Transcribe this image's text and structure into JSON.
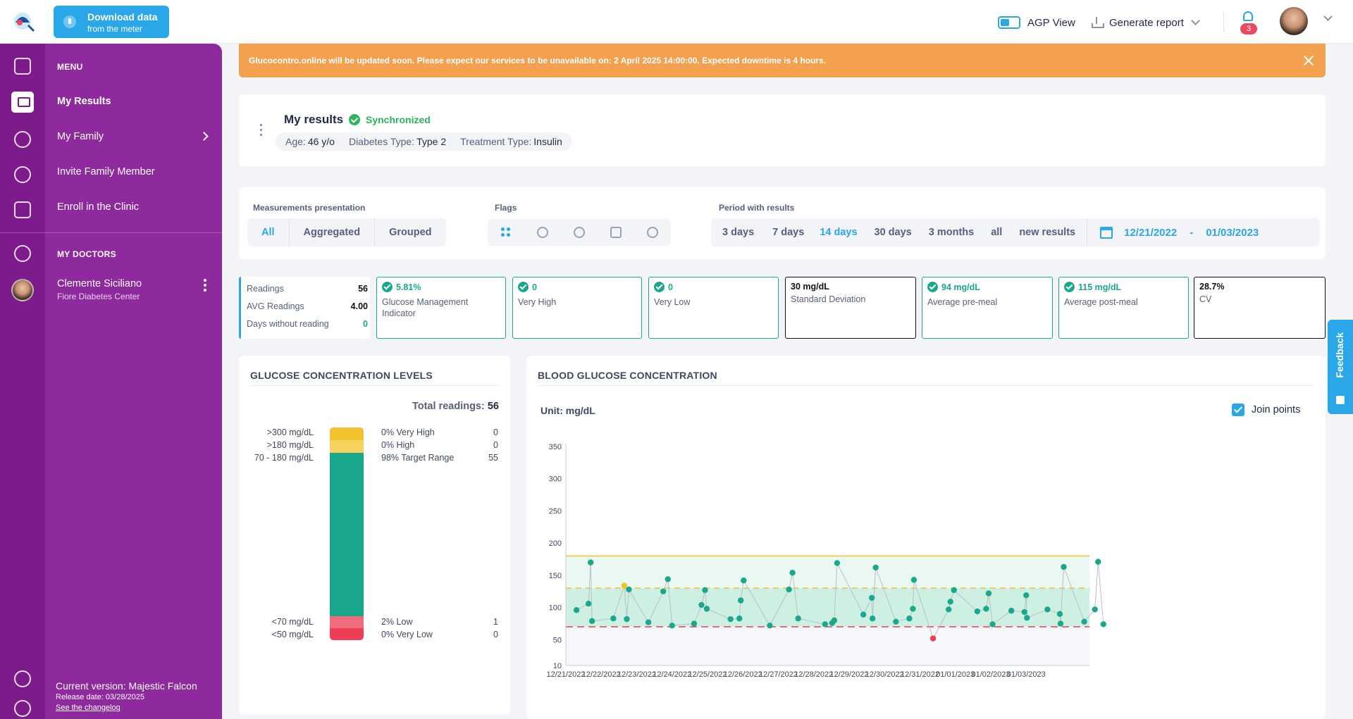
{
  "header": {
    "download_title": "Download data",
    "download_sub": "from the meter",
    "agp_view": "AGP View",
    "generate_report": "Generate report",
    "notifications": "3"
  },
  "rail_icons": [
    "collapse-icon",
    "monitor-icon",
    "family-icon",
    "invite-icon",
    "clinic-icon",
    "stethoscope-icon",
    "globe-icon",
    "help-icon"
  ],
  "menu": {
    "heading": "MENU",
    "items": [
      "My Results",
      "My Family",
      "Invite Family Member",
      "Enroll in the Clinic"
    ],
    "doctors_heading": "MY DOCTORS",
    "doctor_name": "Clemente Siciliano",
    "doctor_clinic": "Fiore Diabetes Center",
    "version": "Current version: Majestic Falcon",
    "release": "Release date: 03/28/2025",
    "changelog": "See the changelog"
  },
  "banner": {
    "text": "Glucocontro.online will be updated soon. Please expect our services to be unavailable on: 2 April 2025 14:00:00. Expected downtime is 4 hours."
  },
  "results": {
    "title": "My results",
    "status": "Synchronized",
    "age_label": "Age:",
    "age": "46 y/o",
    "diabetes_label": "Diabetes Type:",
    "diabetes": "Type 2",
    "treatment_label": "Treatment Type:",
    "treatment": "Insulin"
  },
  "filters": {
    "presentation_label": "Measurements presentation",
    "presentation": [
      "All",
      "Aggregated",
      "Grouped"
    ],
    "flags_label": "Flags",
    "period_label": "Period with results",
    "periods": [
      "3 days",
      "7 days",
      "14 days",
      "30 days",
      "3 months",
      "all",
      "new results"
    ],
    "date_from": "12/21/2022",
    "date_sep": "-",
    "date_to": "01/03/2023"
  },
  "summary": {
    "readings_label": "Readings",
    "readings": "56",
    "avg_label": "AVG Readings",
    "avg": "4.00",
    "days_label": "Days without reading",
    "days": "0"
  },
  "stats": [
    {
      "value": "5.81%",
      "label": "Glucose Management Indicator",
      "ok": true
    },
    {
      "value": "0",
      "label": "Very High",
      "ok": true
    },
    {
      "value": "0",
      "label": "Very Low",
      "ok": true
    },
    {
      "value": "30 mg/dL",
      "label": "Standard Deviation",
      "ok": false
    },
    {
      "value": "94 mg/dL",
      "label": "Average pre-meal",
      "ok": true
    },
    {
      "value": "115 mg/dL",
      "label": "Average post-meal",
      "ok": true
    },
    {
      "value": "28.7%",
      "label": "CV",
      "ok": false
    }
  ],
  "levels": {
    "title": "GLUCOSE CONCENTRATION LEVELS",
    "total_label": "Total readings:",
    "total": "56",
    "rows": [
      {
        "range": ">300 mg/dL",
        "label": "0% Very High",
        "count": "0",
        "color": "#f2c12e"
      },
      {
        "range": ">180 mg/dL",
        "label": "0% High",
        "count": "0",
        "color": "#f5d25e"
      },
      {
        "range": "70 - 180 mg/dL",
        "label": "98% Target Range",
        "count": "55",
        "color": "#1aa88c"
      },
      {
        "range": "<70 mg/dL",
        "label": "2% Low",
        "count": "1",
        "color": "#f06b7d"
      },
      {
        "range": "<50 mg/dL",
        "label": "0% Very Low",
        "count": "0",
        "color": "#ee3d57"
      }
    ]
  },
  "bg": {
    "title": "BLOOD GLUCOSE CONCENTRATION",
    "unit": "Unit: mg/dL",
    "join": "Join points"
  },
  "feedback": "Feedback",
  "chart_data": {
    "type": "scatter",
    "title": "BLOOD GLUCOSE CONCENTRATION",
    "xlabel": "",
    "ylabel": "Unit: mg/dL",
    "ylim": [
      10,
      350
    ],
    "y_ticks": [
      10,
      50,
      100,
      150,
      200,
      250,
      300,
      350
    ],
    "x_ticks": [
      "12/21/2022",
      "12/22/2022",
      "12/23/2022",
      "12/24/2022",
      "12/25/2022",
      "12/26/2022",
      "12/27/2022",
      "12/28/2022",
      "12/29/2022",
      "12/30/2022",
      "12/31/2022",
      "01/01/2023",
      "01/02/2023",
      "01/03/2023"
    ],
    "thresholds": {
      "high": 180,
      "target": 130,
      "low": 70
    },
    "join_points": true,
    "colors": {
      "normal": "#1aa88c",
      "elevated": "#f2c12e",
      "low": "#ee3d57",
      "line": "#b9bfcb"
    },
    "points": [
      {
        "x": 12.3,
        "y": 96
      },
      {
        "x": 12.64,
        "y": 106
      },
      {
        "x": 12.7,
        "y": 170
      },
      {
        "x": 12.74,
        "y": 79
      },
      {
        "x": 13.34,
        "y": 83
      },
      {
        "x": 13.65,
        "y": 134
      },
      {
        "x": 13.72,
        "y": 82
      },
      {
        "x": 13.78,
        "y": 128
      },
      {
        "x": 14.33,
        "y": 77
      },
      {
        "x": 14.75,
        "y": 125
      },
      {
        "x": 14.88,
        "y": 144
      },
      {
        "x": 15.0,
        "y": 72
      },
      {
        "x": 15.62,
        "y": 75
      },
      {
        "x": 15.83,
        "y": 104
      },
      {
        "x": 15.93,
        "y": 127
      },
      {
        "x": 15.98,
        "y": 98
      },
      {
        "x": 16.65,
        "y": 82
      },
      {
        "x": 16.9,
        "y": 83
      },
      {
        "x": 16.94,
        "y": 111
      },
      {
        "x": 17.02,
        "y": 142
      },
      {
        "x": 17.76,
        "y": 72
      },
      {
        "x": 18.3,
        "y": 128
      },
      {
        "x": 18.4,
        "y": 154
      },
      {
        "x": 18.56,
        "y": 83
      },
      {
        "x": 19.32,
        "y": 74
      },
      {
        "x": 19.52,
        "y": 76
      },
      {
        "x": 19.58,
        "y": 80
      },
      {
        "x": 19.66,
        "y": 169
      },
      {
        "x": 20.4,
        "y": 89
      },
      {
        "x": 20.64,
        "y": 115
      },
      {
        "x": 20.66,
        "y": 83
      },
      {
        "x": 20.75,
        "y": 162
      },
      {
        "x": 21.32,
        "y": 78
      },
      {
        "x": 21.7,
        "y": 83
      },
      {
        "x": 21.8,
        "y": 98
      },
      {
        "x": 21.83,
        "y": 143
      },
      {
        "x": 22.37,
        "y": 52
      },
      {
        "x": 22.81,
        "y": 97
      },
      {
        "x": 22.86,
        "y": 109
      },
      {
        "x": 22.96,
        "y": 127
      },
      {
        "x": 23.62,
        "y": 94
      },
      {
        "x": 23.87,
        "y": 98
      },
      {
        "x": 23.94,
        "y": 122
      },
      {
        "x": 24.05,
        "y": 74
      },
      {
        "x": 24.58,
        "y": 95
      },
      {
        "x": 24.95,
        "y": 93
      },
      {
        "x": 25.0,
        "y": 119
      },
      {
        "x": 25.02,
        "y": 84
      },
      {
        "x": 25.6,
        "y": 97
      },
      {
        "x": 25.95,
        "y": 90
      },
      {
        "x": 25.97,
        "y": 75
      },
      {
        "x": 26.06,
        "y": 163
      },
      {
        "x": 26.64,
        "y": 78
      },
      {
        "x": 26.94,
        "y": 97
      },
      {
        "x": 27.03,
        "y": 171
      },
      {
        "x": 27.18,
        "y": 74
      }
    ],
    "x_point_units": "day index from 12/21/2022 = 12.0"
  }
}
